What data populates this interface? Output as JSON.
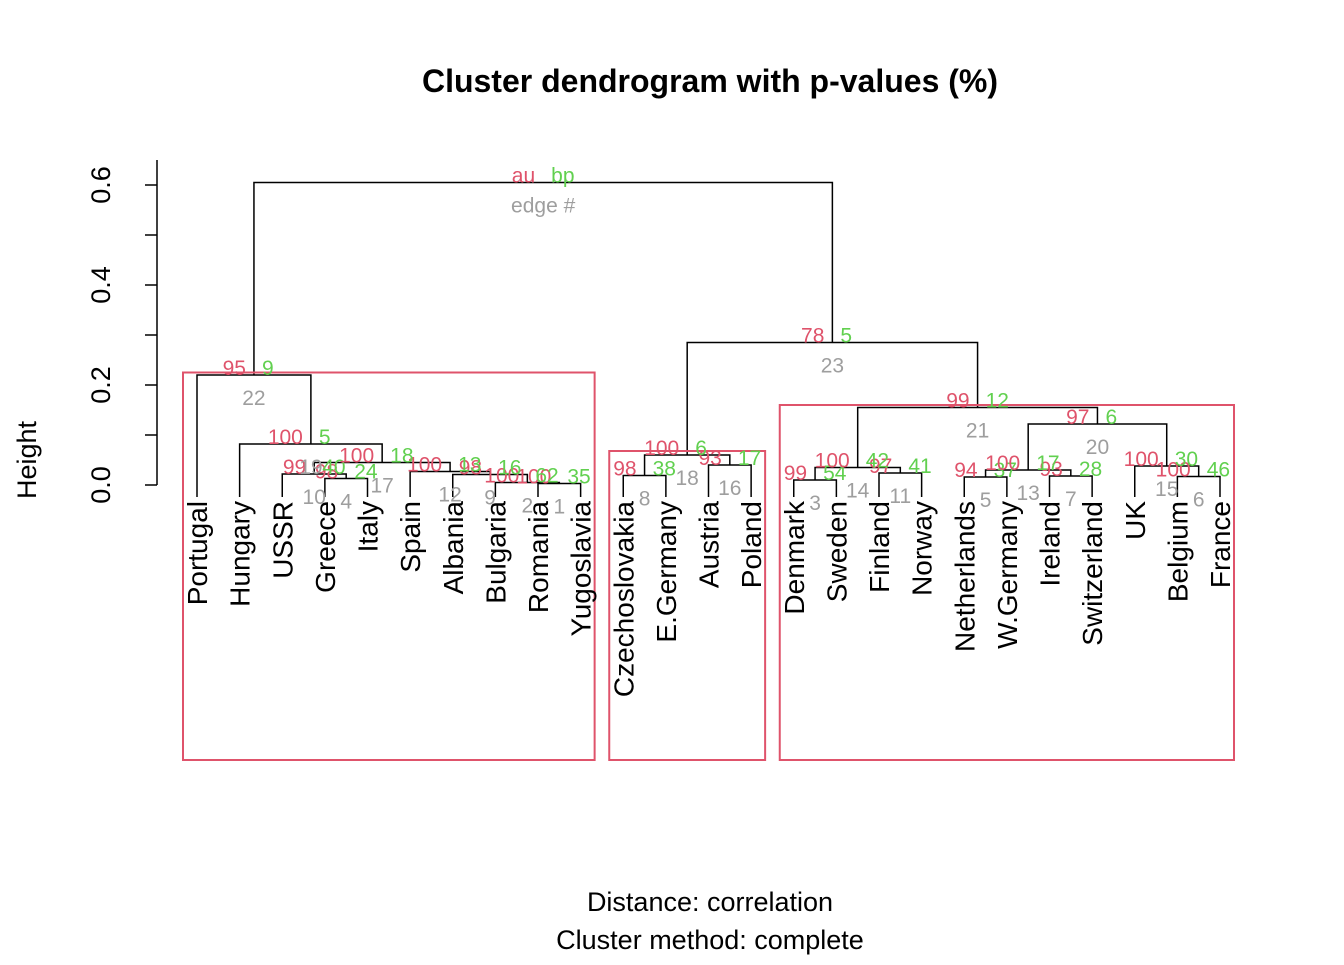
{
  "chart_data": {
    "type": "dendrogram",
    "title": "Cluster dendrogram with p-values (%)",
    "ylabel": "Height",
    "xlabel_lines": [
      "Distance:  correlation",
      "Cluster method: complete"
    ],
    "ylim": [
      0,
      0.6
    ],
    "y_ticks": [
      0.0,
      0.2,
      0.4,
      0.6
    ],
    "y_tick_labels": [
      "0.0",
      "0.2",
      "0.4",
      "0.6"
    ],
    "legend": {
      "au": "au",
      "bp": "bp",
      "edge": "edge #"
    },
    "colors": {
      "au": "#DF536B",
      "bp": "#61D04F",
      "edge": "#9E9E9E",
      "line": "#000000",
      "box": "#DF536B"
    },
    "leaves": [
      "Portugal",
      "Hungary",
      "USSR",
      "Greece",
      "Italy",
      "Spain",
      "Albania",
      "Bulgaria",
      "Romania",
      "Yugoslavia",
      "Czechoslovakia",
      "E.Germany",
      "Austria",
      "Poland",
      "Denmark",
      "Sweden",
      "Finland",
      "Norway",
      "Netherlands",
      "W.Germany",
      "Ireland",
      "Switzerland",
      "UK",
      "Belgium",
      "France"
    ],
    "merges": [
      {
        "a": "L:Romania",
        "b": "L:Yugoslavia",
        "h": 0.003,
        "au": "100",
        "bp": "35",
        "edge": "1"
      },
      {
        "a": "L:Bulgaria",
        "b": "M:1",
        "h": 0.005,
        "au": "100",
        "bp": "62",
        "edge": "2"
      },
      {
        "a": "L:Denmark",
        "b": "L:Sweden",
        "h": 0.01,
        "au": "99",
        "bp": "54",
        "edge": "3"
      },
      {
        "a": "L:Greece",
        "b": "L:Italy",
        "h": 0.013,
        "au": "98",
        "bp": "24",
        "edge": "4"
      },
      {
        "a": "L:Netherlands",
        "b": "L:W.Germany",
        "h": 0.016,
        "au": "94",
        "bp": "37",
        "edge": "5"
      },
      {
        "a": "L:Belgium",
        "b": "L:France",
        "h": 0.017,
        "au": "100",
        "bp": "46",
        "edge": "6"
      },
      {
        "a": "L:Ireland",
        "b": "L:Switzerland",
        "h": 0.018,
        "au": "93",
        "bp": "28",
        "edge": "7"
      },
      {
        "a": "L:Czechoslovakia",
        "b": "L:E.Germany",
        "h": 0.019,
        "au": "98",
        "bp": "38",
        "edge": "8"
      },
      {
        "a": "L:Albania",
        "b": "M:2",
        "h": 0.021,
        "au": "98",
        "bp": "16",
        "edge": "9"
      },
      {
        "a": "L:USSR",
        "b": "M:4",
        "h": 0.022,
        "au": "99",
        "bp": "40",
        "edge": "10"
      },
      {
        "a": "L:Finland",
        "b": "L:Norway",
        "h": 0.024,
        "au": "97",
        "bp": "41",
        "edge": "11"
      },
      {
        "a": "L:Spain",
        "b": "M:9",
        "h": 0.027,
        "au": "100",
        "bp": "13",
        "edge": "12"
      },
      {
        "a": "M:5",
        "b": "M:7",
        "h": 0.03,
        "au": "100",
        "bp": "17",
        "edge": "13"
      },
      {
        "a": "M:3",
        "b": "M:11",
        "h": 0.035,
        "au": "100",
        "bp": "42",
        "edge": "14"
      },
      {
        "a": "L:UK",
        "b": "M:6",
        "h": 0.038,
        "au": "100",
        "bp": "30",
        "edge": "15"
      },
      {
        "a": "L:Austria",
        "b": "L:Poland",
        "h": 0.04,
        "au": "93",
        "bp": "17",
        "edge": "16"
      },
      {
        "a": "M:10",
        "b": "M:12",
        "h": 0.045,
        "au": "100",
        "bp": "18",
        "edge": "17"
      },
      {
        "a": "M:8",
        "b": "M:16",
        "h": 0.06,
        "au": "100",
        "bp": "6",
        "edge": "18"
      },
      {
        "a": "L:Hungary",
        "b": "M:17",
        "h": 0.082,
        "au": "100",
        "bp": "5",
        "edge": "19"
      },
      {
        "a": "M:13",
        "b": "M:15",
        "h": 0.122,
        "au": "97",
        "bp": "6",
        "edge": "20"
      },
      {
        "a": "M:14",
        "b": "M:20",
        "h": 0.155,
        "au": "99",
        "bp": "12",
        "edge": "21"
      },
      {
        "a": "L:Portugal",
        "b": "M:19",
        "h": 0.22,
        "au": "95",
        "bp": "9",
        "edge": "22"
      },
      {
        "a": "M:18",
        "b": "M:21",
        "h": 0.285,
        "au": "78",
        "bp": "5",
        "edge": "23"
      },
      {
        "a": "M:22",
        "b": "M:23",
        "h": 0.605,
        "au": "",
        "bp": "",
        "edge": ""
      }
    ],
    "highlight_clusters": [
      {
        "first_leaf": "Portugal",
        "last_leaf": "Yugoslavia",
        "top_height": 0.225
      },
      {
        "first_leaf": "Czechoslovakia",
        "last_leaf": "Poland",
        "top_height": 0.068
      },
      {
        "first_leaf": "Denmark",
        "last_leaf": "France",
        "top_height": 0.16
      }
    ]
  }
}
